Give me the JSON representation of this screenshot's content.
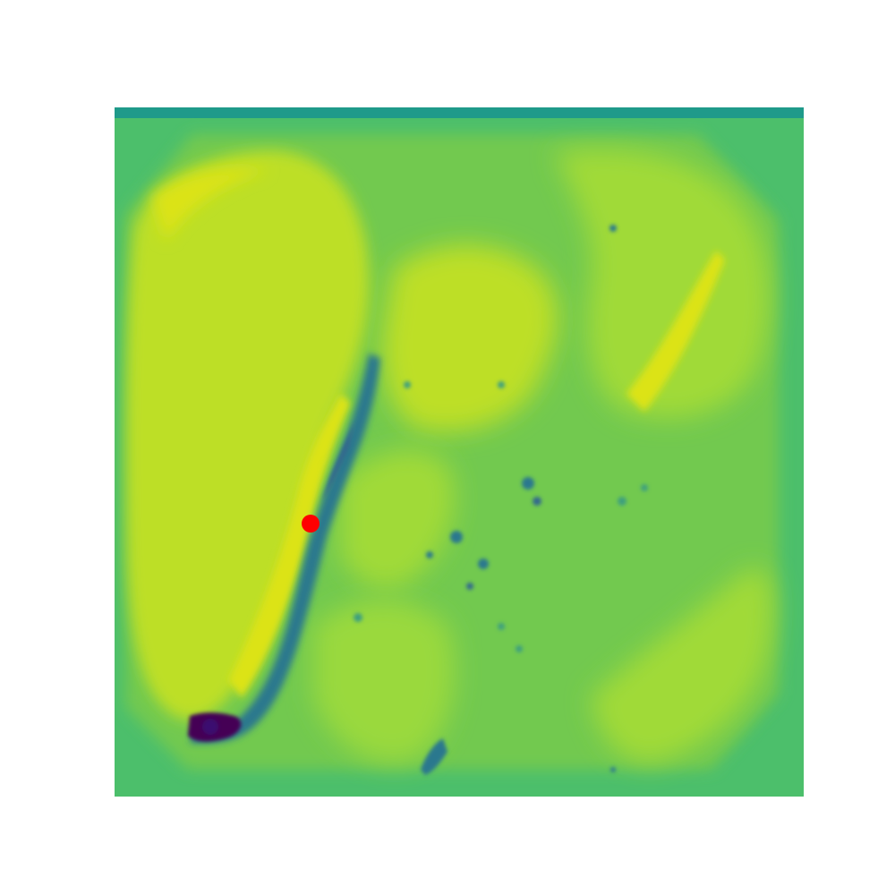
{
  "image": {
    "kind": "viridis-heatmap",
    "colors": {
      "background": "#ffffff",
      "field_base": "#72c94f",
      "field_edge": "#4cbf6b",
      "top_band": "#1f9a8a",
      "bright_yellow": "#dce319",
      "light_yellow": "#bddf26",
      "mid_green": "#8fd744",
      "teal": "#2a788e",
      "deep_blue": "#31688e",
      "dark_purple": "#440154"
    },
    "marker": {
      "label": "red-dot",
      "color": "#ff0000"
    }
  }
}
